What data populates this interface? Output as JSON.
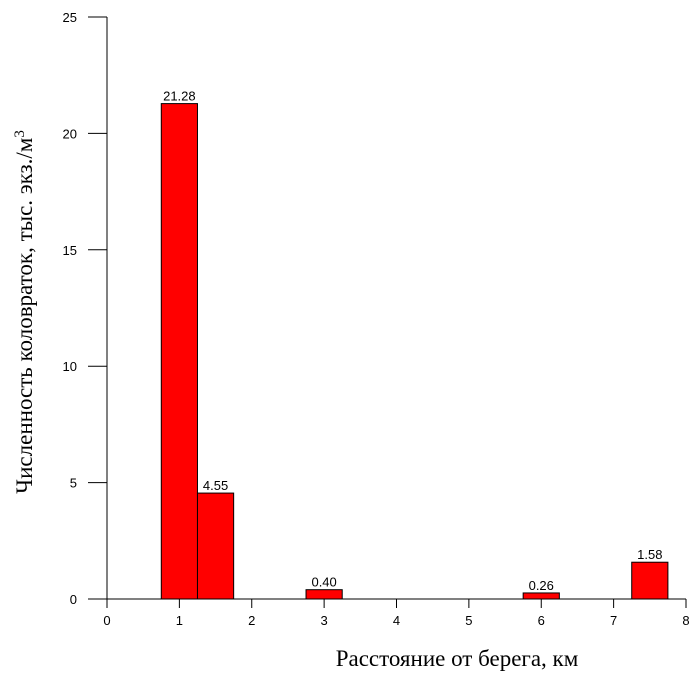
{
  "chart_data": {
    "type": "bar",
    "x_label": "Расстояние от берега, км",
    "y_label": "Численность коловраток, тыс. экз./м",
    "y_label_superscript": "3",
    "x": [
      1,
      1.5,
      3,
      6,
      7.5
    ],
    "bar_width": 0.5,
    "values": [
      21.28,
      4.55,
      0.4,
      0.26,
      1.58
    ],
    "value_labels": [
      "21.28",
      "4.55",
      "0.40",
      "0.26",
      "1.58"
    ],
    "color": "#ff0000",
    "xlim": [
      0,
      8
    ],
    "xticks": [
      0,
      1,
      2,
      3,
      4,
      5,
      6,
      7,
      8
    ],
    "ylim": [
      0,
      25
    ],
    "yticks": [
      0,
      5,
      10,
      15,
      20,
      25
    ]
  }
}
